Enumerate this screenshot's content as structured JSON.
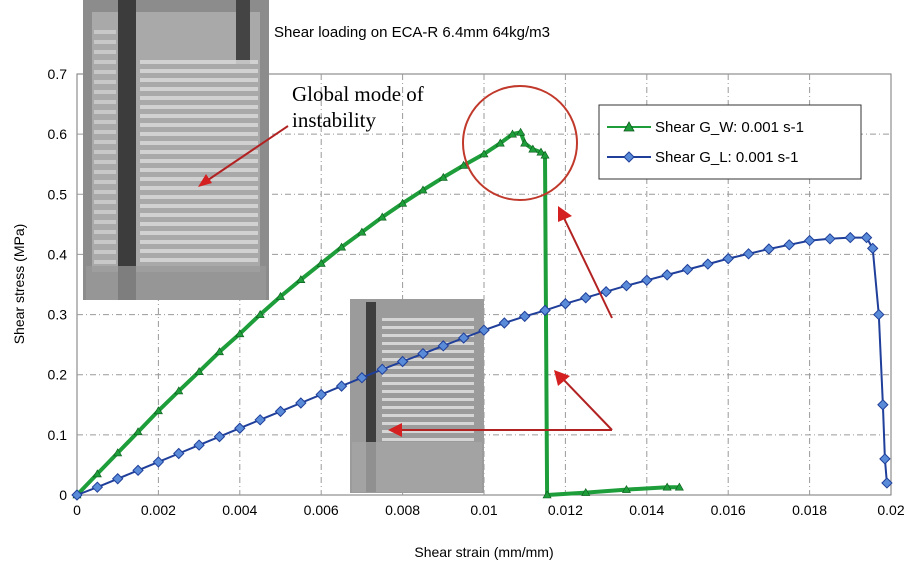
{
  "chart_data": {
    "type": "line",
    "title": "Shear loading on ECA-R 6.4mm 64kg/m3",
    "xlabel": "Shear strain (mm/mm)",
    "ylabel": "Shear stress (MPa)",
    "xlim": [
      0,
      0.02
    ],
    "ylim": [
      0,
      0.7
    ],
    "x_ticks": [
      "0",
      "0.002",
      "0.004",
      "0.006",
      "0.008",
      "0.01",
      "0.012",
      "0.014",
      "0.016",
      "0.018",
      "0.02"
    ],
    "y_ticks": [
      "0",
      "0.1",
      "0.2",
      "0.3",
      "0.4",
      "0.5",
      "0.6",
      "0.7"
    ],
    "grid": true,
    "legend_position": "top-right",
    "annotations": [
      "Global mode of",
      "instability"
    ],
    "series": [
      {
        "name": "Shear G_W: 0.001 s-1",
        "color": "#1e9e3a",
        "marker": "triangle",
        "points": [
          [
            0,
            0
          ],
          [
            0.0005,
            0.035
          ],
          [
            0.001,
            0.07
          ],
          [
            0.0015,
            0.105
          ],
          [
            0.002,
            0.14
          ],
          [
            0.0025,
            0.173
          ],
          [
            0.003,
            0.205
          ],
          [
            0.0035,
            0.238
          ],
          [
            0.004,
            0.268
          ],
          [
            0.0045,
            0.3
          ],
          [
            0.005,
            0.33
          ],
          [
            0.0055,
            0.358
          ],
          [
            0.006,
            0.385
          ],
          [
            0.0065,
            0.412
          ],
          [
            0.007,
            0.437
          ],
          [
            0.0075,
            0.462
          ],
          [
            0.008,
            0.485
          ],
          [
            0.0085,
            0.507
          ],
          [
            0.009,
            0.528
          ],
          [
            0.0095,
            0.548
          ],
          [
            0.01,
            0.567
          ],
          [
            0.0104,
            0.585
          ],
          [
            0.0107,
            0.6
          ],
          [
            0.0109,
            0.603
          ],
          [
            0.011,
            0.585
          ],
          [
            0.0112,
            0.575
          ],
          [
            0.0114,
            0.57
          ],
          [
            0.0115,
            0.565
          ],
          [
            0.01155,
            0.0
          ],
          [
            0.0125,
            0.004
          ],
          [
            0.0135,
            0.009
          ],
          [
            0.0145,
            0.013
          ],
          [
            0.0148,
            0.013
          ]
        ]
      },
      {
        "name": "Shear G_L: 0.001 s-1",
        "color": "#1f3f9a",
        "marker": "diamond",
        "points": [
          [
            0,
            0
          ],
          [
            0.0005,
            0.013
          ],
          [
            0.001,
            0.027
          ],
          [
            0.0015,
            0.041
          ],
          [
            0.002,
            0.055
          ],
          [
            0.0025,
            0.069
          ],
          [
            0.003,
            0.083
          ],
          [
            0.0035,
            0.097
          ],
          [
            0.004,
            0.111
          ],
          [
            0.0045,
            0.125
          ],
          [
            0.005,
            0.139
          ],
          [
            0.0055,
            0.153
          ],
          [
            0.006,
            0.167
          ],
          [
            0.0065,
            0.181
          ],
          [
            0.007,
            0.195
          ],
          [
            0.0075,
            0.209
          ],
          [
            0.008,
            0.222
          ],
          [
            0.0085,
            0.235
          ],
          [
            0.009,
            0.248
          ],
          [
            0.0095,
            0.261
          ],
          [
            0.01,
            0.274
          ],
          [
            0.0105,
            0.286
          ],
          [
            0.011,
            0.297
          ],
          [
            0.0115,
            0.307
          ],
          [
            0.012,
            0.318
          ],
          [
            0.0125,
            0.328
          ],
          [
            0.013,
            0.338
          ],
          [
            0.0135,
            0.348
          ],
          [
            0.014,
            0.357
          ],
          [
            0.0145,
            0.366
          ],
          [
            0.015,
            0.375
          ],
          [
            0.0155,
            0.384
          ],
          [
            0.016,
            0.393
          ],
          [
            0.0165,
            0.401
          ],
          [
            0.017,
            0.409
          ],
          [
            0.0175,
            0.416
          ],
          [
            0.018,
            0.423
          ],
          [
            0.0185,
            0.426
          ],
          [
            0.019,
            0.428
          ],
          [
            0.0194,
            0.428
          ],
          [
            0.01955,
            0.41
          ],
          [
            0.0197,
            0.3
          ],
          [
            0.0198,
            0.15
          ],
          [
            0.01985,
            0.06
          ],
          [
            0.0199,
            0.02
          ]
        ]
      }
    ]
  }
}
